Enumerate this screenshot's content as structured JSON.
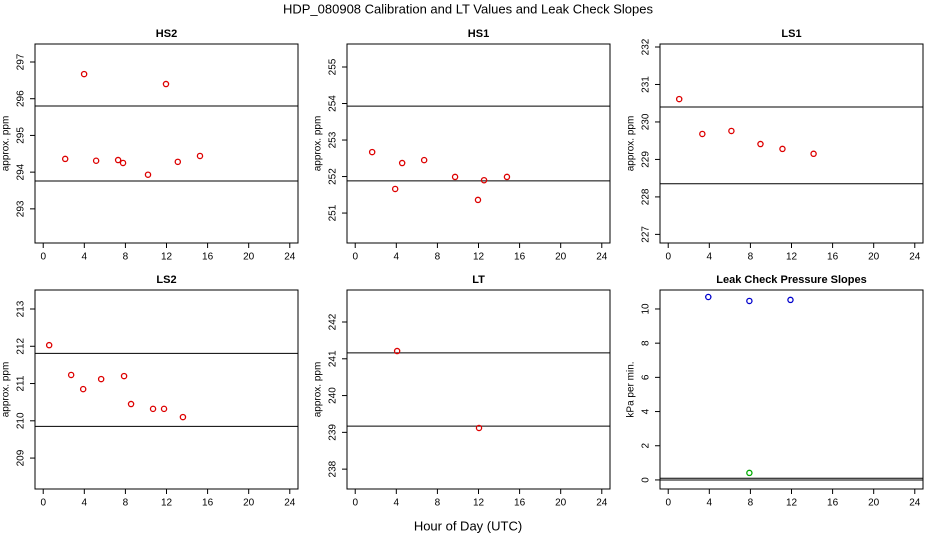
{
  "title": "HDP_080908  Calibration and LT Values and Leak Check Slopes",
  "xlabel": "Hour of Day (UTC)",
  "chart_data": [
    {
      "type": "scatter",
      "title": "HS2",
      "ylabel": "approx. ppm",
      "color": "#dd0000",
      "x": [
        2.14,
        3.98,
        5.15,
        7.29,
        7.77,
        10.2,
        11.95,
        13.1,
        15.26
      ],
      "values": [
        294.36,
        296.67,
        294.31,
        294.33,
        294.25,
        293.93,
        296.4,
        294.28,
        294.44
      ],
      "hlines": [
        295.8,
        293.76
      ],
      "xlim": [
        -0.8,
        24.8
      ],
      "xticks": [
        0,
        4,
        8,
        12,
        16,
        20,
        24
      ],
      "ylim": [
        292.07,
        297.49
      ],
      "yticks": [
        293,
        294,
        295,
        296,
        297
      ]
    },
    {
      "type": "scatter",
      "title": "HS1",
      "ylabel": "approx. ppm",
      "color": "#dd0000",
      "x": [
        1.65,
        3.89,
        4.57,
        6.71,
        9.72,
        11.95,
        12.54,
        14.77
      ],
      "values": [
        252.67,
        251.66,
        252.37,
        252.45,
        251.99,
        251.36,
        251.9,
        251.99
      ],
      "hlines": [
        253.93,
        251.88
      ],
      "xlim": [
        -0.8,
        24.8
      ],
      "xticks": [
        0,
        4,
        8,
        12,
        16,
        20,
        24
      ],
      "ylim": [
        250.18,
        255.63
      ],
      "yticks": [
        251,
        252,
        253,
        254,
        255
      ]
    },
    {
      "type": "scatter",
      "title": "LS1",
      "ylabel": "approx. ppm",
      "color": "#dd0000",
      "x": [
        1.07,
        3.32,
        6.15,
        8.98,
        11.12,
        14.15
      ],
      "values": [
        230.61,
        229.68,
        229.76,
        229.41,
        229.28,
        229.15
      ],
      "hlines": [
        230.4,
        228.35
      ],
      "xlim": [
        -0.8,
        24.8
      ],
      "xticks": [
        0,
        4,
        8,
        12,
        16,
        20,
        24
      ],
      "ylim": [
        226.77,
        232.08
      ],
      "yticks": [
        227,
        228,
        229,
        230,
        231,
        232
      ]
    },
    {
      "type": "scatter",
      "title": "LS2",
      "ylabel": "approx. ppm",
      "color": "#dd0000",
      "x": [
        0.58,
        2.72,
        3.89,
        5.64,
        7.87,
        8.55,
        10.69,
        11.76,
        13.6
      ],
      "values": [
        212.03,
        211.23,
        210.85,
        211.12,
        211.2,
        210.45,
        210.32,
        210.32,
        210.1
      ],
      "hlines": [
        211.81,
        209.85
      ],
      "xlim": [
        -0.8,
        24.8
      ],
      "xticks": [
        0,
        4,
        8,
        12,
        16,
        20,
        24
      ],
      "ylim": [
        208.17,
        213.51
      ],
      "yticks": [
        209,
        210,
        211,
        212,
        213
      ]
    },
    {
      "type": "scatter",
      "title": "LT",
      "ylabel": "approx. ppm",
      "color": "#dd0000",
      "x": [
        4.08,
        12.05
      ],
      "values": [
        241.21,
        239.12
      ],
      "hlines": [
        241.16,
        239.17
      ],
      "xlim": [
        -0.8,
        24.8
      ],
      "xticks": [
        0,
        4,
        8,
        12,
        16,
        20,
        24
      ],
      "ylim": [
        237.46,
        242.87
      ],
      "yticks": [
        238,
        239,
        240,
        241,
        242
      ]
    },
    {
      "type": "scatter",
      "title": "Leak Check Pressure Slopes",
      "ylabel": "kPa per min.",
      "series": [
        {
          "color": "#0000cc",
          "x": [
            3.9,
            7.9,
            11.9
          ],
          "values": [
            10.7,
            10.47,
            10.53
          ]
        },
        {
          "color": "#00aa00",
          "x": [
            7.9
          ],
          "values": [
            0.41
          ]
        }
      ],
      "hlines": [
        0.1,
        0
      ],
      "xlim": [
        -0.8,
        24.8
      ],
      "xticks": [
        0,
        4,
        8,
        12,
        16,
        20,
        24
      ],
      "ylim": [
        -0.53,
        11.11
      ],
      "yticks": [
        0,
        2,
        4,
        6,
        8,
        10
      ]
    }
  ]
}
